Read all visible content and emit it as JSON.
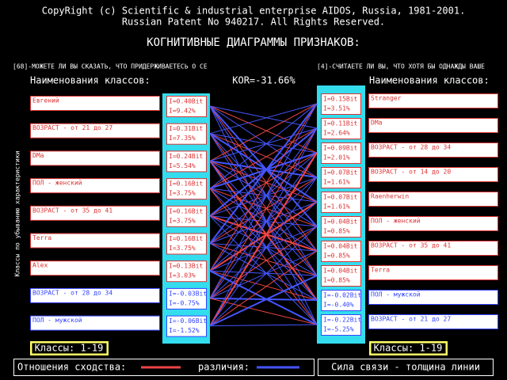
{
  "header": {
    "line1": "CopyRight (c) Scientific & industrial enterprise AIDOS, Russia, 1981-2001.",
    "line2": "Russian Patent No 940217. All Rights Reserved.",
    "title": "КОГНИТИВНЫЕ ДИАГРАММЫ ПРИЗНАКОВ:"
  },
  "left": {
    "question": "[68]-МОЖЕТЕ ЛИ ВЫ СКАЗАТЬ, ЧТО ПРИДЕРЖИВАЕТЕСЬ О СЕ",
    "heading": "Наименования классов:",
    "rows": [
      {
        "name": "Евгений",
        "bit": "I=0.40Bit",
        "pct": "I=9.42%"
      },
      {
        "name": "ВОЗРАСТ - от 21 до 27",
        "bit": "I=0.31Bit",
        "pct": "I=7.35%"
      },
      {
        "name": "DMa",
        "bit": "I=0.24Bit",
        "pct": "I=5.54%"
      },
      {
        "name": "ПОЛ - женский",
        "bit": "I=0.16Bit",
        "pct": "I=3.75%"
      },
      {
        "name": "ВОЗРАСТ - от 35 до 41",
        "bit": "I=0.16Bit",
        "pct": "I=3.75%"
      },
      {
        "name": "Terra",
        "bit": "I=0.16Bit",
        "pct": "I=3.75%"
      },
      {
        "name": "Alex",
        "bit": "I=0.13Bit",
        "pct": "I=3.03%"
      },
      {
        "name": "ВОЗРАСТ - от 28 до 34",
        "bit": "I=-0.03Bit",
        "pct": "I=-0.75%"
      },
      {
        "name": "ПОЛ - мужской",
        "bit": "I=-0.06Bit",
        "pct": "I=-1.52%"
      }
    ],
    "classes": "Классы: 1-19"
  },
  "right": {
    "question": "[4]-СЧИТАЕТЕ ЛИ ВЫ, ЧТО ХОТЯ БЫ ОДНАЖДЫ ВАШЕ",
    "heading": "Наименования классов:",
    "rows": [
      {
        "name": "Stranger",
        "bit": "I=0.15Bit",
        "pct": "I=3.51%"
      },
      {
        "name": "DMa",
        "bit": "I=0.11Bit",
        "pct": "I=2.64%"
      },
      {
        "name": "ВОЗРАСТ - от 28 до 34",
        "bit": "I=0.09Bit",
        "pct": "I=2.01%"
      },
      {
        "name": "ВОЗРАСТ - от 14 до 20",
        "bit": "I=0.07Bit",
        "pct": "I=1.61%"
      },
      {
        "name": "Raenherwin",
        "bit": "I=0.07Bit",
        "pct": "I=1.61%"
      },
      {
        "name": "ПОЛ - женский",
        "bit": "I=0.04Bit",
        "pct": "I=0.85%"
      },
      {
        "name": "ВОЗРАСТ - от 35 до 41",
        "bit": "I=0.04Bit",
        "pct": "I=0.85%"
      },
      {
        "name": "Terra",
        "bit": "I=0.04Bit",
        "pct": "I=0.85%"
      },
      {
        "name": "ПОЛ - мужской",
        "bit": "I=-0.02Bit",
        "pct": "I=-0.40%"
      },
      {
        "name": "ВОЗРАСТ - от 21 до 27",
        "bit": "I=-0.22Bit",
        "pct": "I=-5.25%"
      }
    ],
    "classes": "Классы: 1-19"
  },
  "kor": "KOR=-31.66%",
  "side_label": "Классы по убыванию характеристики",
  "legend": {
    "similar": "Отношения сходства:",
    "different": "различия:",
    "strength": "Сила связи - толщина линии"
  }
}
